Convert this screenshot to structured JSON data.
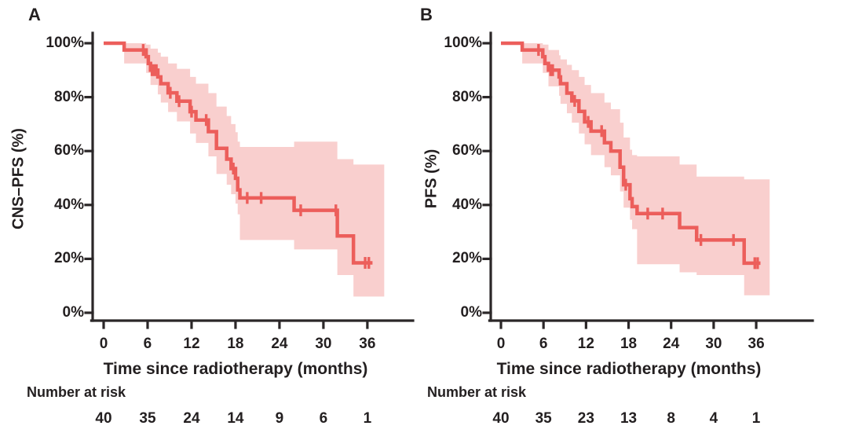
{
  "figure_title": "",
  "chart_data": [
    {
      "type": "line",
      "subtype": "kaplan-meier-step-with-confidence-band",
      "panel_label": "A",
      "xlabel": "Time since radiotherapy (months)",
      "ylabel": "CNS–PFS (%)",
      "xlim": [
        0,
        39
      ],
      "ylim": [
        0,
        100
      ],
      "xticks": [
        0,
        6,
        12,
        18,
        24,
        30,
        36
      ],
      "yticks": [
        [
          0,
          "0%"
        ],
        [
          20,
          "20%"
        ],
        [
          40,
          "40%"
        ],
        [
          60,
          "60%"
        ],
        [
          80,
          "80%"
        ],
        [
          100,
          "100%"
        ]
      ],
      "grid": false,
      "legend": "none",
      "line_color": "#ec5e5b",
      "band_color": "#f9cfce",
      "steps": [
        [
          0,
          100
        ],
        [
          2.8,
          97.5
        ],
        [
          5.8,
          95
        ],
        [
          6.1,
          92.5
        ],
        [
          6.4,
          90
        ],
        [
          7.4,
          87.5
        ],
        [
          7.8,
          85
        ],
        [
          8.8,
          81.6
        ],
        [
          10.0,
          78.5
        ],
        [
          11.8,
          74.6
        ],
        [
          12.6,
          71.5
        ],
        [
          14.3,
          67.2
        ],
        [
          15.4,
          61.0
        ],
        [
          16.8,
          57.0
        ],
        [
          17.4,
          53.5
        ],
        [
          18.0,
          49.9
        ],
        [
          18.3,
          45.6
        ],
        [
          18.6,
          42.6
        ],
        [
          26.0,
          38.0
        ],
        [
          31.9,
          28.5
        ],
        [
          34.1,
          18.5
        ]
      ],
      "curve_end": 36.7,
      "censors": [
        [
          5.4,
          97.5
        ],
        [
          6.6,
          90
        ],
        [
          6.9,
          90
        ],
        [
          7.2,
          90
        ],
        [
          9.1,
          81.6
        ],
        [
          10.3,
          78.5
        ],
        [
          12.0,
          74.6
        ],
        [
          14.0,
          71.5
        ],
        [
          17.7,
          53.5
        ],
        [
          19.6,
          42.6
        ],
        [
          21.5,
          42.6
        ],
        [
          26.9,
          38.0
        ],
        [
          31.7,
          38.0
        ],
        [
          35.7,
          18.5
        ],
        [
          36.2,
          18.5
        ]
      ],
      "band": [
        [
          2.8,
          100,
          92.5
        ],
        [
          5.8,
          99.5,
          89
        ],
        [
          6.4,
          98,
          84.5
        ],
        [
          7.4,
          96.5,
          81
        ],
        [
          7.8,
          95,
          78
        ],
        [
          8.8,
          92.5,
          74.5
        ],
        [
          10.0,
          90.5,
          71
        ],
        [
          11.8,
          87.5,
          66.5
        ],
        [
          12.6,
          85,
          63
        ],
        [
          14.3,
          81.5,
          58
        ],
        [
          15.4,
          76.5,
          51.5
        ],
        [
          16.8,
          73,
          47.5
        ],
        [
          17.4,
          70,
          44
        ],
        [
          18.0,
          67,
          40.5
        ],
        [
          18.3,
          63.5,
          36.5
        ],
        [
          18.6,
          61.5,
          27
        ],
        [
          26.0,
          63.5,
          23.5
        ],
        [
          31.9,
          57,
          14
        ],
        [
          34.1,
          55,
          6
        ]
      ],
      "band_end": 38.3,
      "number_at_risk": {
        "title": "Number at risk",
        "times": [
          0,
          6,
          12,
          18,
          24,
          30,
          36
        ],
        "values": [
          40,
          35,
          24,
          14,
          9,
          6,
          1
        ]
      }
    },
    {
      "type": "line",
      "subtype": "kaplan-meier-step-with-confidence-band",
      "panel_label": "B",
      "xlabel": "Time since radiotherapy (months)",
      "ylabel": "PFS (%)",
      "xlim": [
        0,
        39
      ],
      "ylim": [
        0,
        100
      ],
      "xticks": [
        0,
        6,
        12,
        18,
        24,
        30,
        36
      ],
      "yticks": [
        [
          0,
          "0%"
        ],
        [
          20,
          "20%"
        ],
        [
          40,
          "40%"
        ],
        [
          60,
          "60%"
        ],
        [
          80,
          "80%"
        ],
        [
          100,
          "100%"
        ]
      ],
      "grid": false,
      "legend": "none",
      "line_color": "#ec5e5b",
      "band_color": "#f9cfce",
      "steps": [
        [
          0,
          100
        ],
        [
          3.0,
          97.5
        ],
        [
          5.9,
          95
        ],
        [
          6.2,
          92.5
        ],
        [
          6.7,
          90
        ],
        [
          8.2,
          87.5
        ],
        [
          8.4,
          85
        ],
        [
          9.3,
          81.5
        ],
        [
          10.0,
          78.6
        ],
        [
          11.0,
          74.7
        ],
        [
          11.8,
          70.8
        ],
        [
          12.7,
          67.4
        ],
        [
          14.6,
          63.1
        ],
        [
          15.5,
          60.0
        ],
        [
          16.8,
          54.0
        ],
        [
          17.3,
          47.5
        ],
        [
          18.2,
          42.3
        ],
        [
          18.5,
          39.4
        ],
        [
          19.2,
          36.8
        ],
        [
          25.2,
          31.6
        ],
        [
          27.6,
          27.0
        ],
        [
          34.3,
          18.4
        ]
      ],
      "curve_end": 36.6,
      "censors": [
        [
          5.3,
          97.5
        ],
        [
          7.0,
          90
        ],
        [
          7.3,
          90
        ],
        [
          10.4,
          78.6
        ],
        [
          12.3,
          70.8
        ],
        [
          14.2,
          67.4
        ],
        [
          17.6,
          47.5
        ],
        [
          20.7,
          36.8
        ],
        [
          22.8,
          36.8
        ],
        [
          28.2,
          27.0
        ],
        [
          32.8,
          27.0
        ],
        [
          35.8,
          18.4
        ],
        [
          36.2,
          18.4
        ]
      ],
      "band": [
        [
          3.0,
          100,
          92.5
        ],
        [
          5.9,
          99.5,
          89
        ],
        [
          6.7,
          97.5,
          84
        ],
        [
          8.2,
          95.5,
          80.5
        ],
        [
          8.4,
          94,
          77.5
        ],
        [
          9.3,
          92,
          74
        ],
        [
          10.0,
          90,
          70.5
        ],
        [
          11.0,
          87.5,
          66.5
        ],
        [
          11.8,
          84.5,
          62.5
        ],
        [
          12.7,
          81.5,
          58.5
        ],
        [
          14.6,
          78,
          54
        ],
        [
          15.5,
          75.5,
          51
        ],
        [
          16.8,
          70.5,
          45
        ],
        [
          17.3,
          65,
          39
        ],
        [
          18.2,
          60.5,
          34.5
        ],
        [
          18.5,
          58.5,
          31
        ],
        [
          19.2,
          58,
          18
        ],
        [
          25.2,
          55,
          15
        ],
        [
          27.6,
          50.5,
          14
        ],
        [
          34.3,
          49.5,
          6.5
        ]
      ],
      "band_end": 37.9,
      "number_at_risk": {
        "title": "Number at risk",
        "times": [
          0,
          6,
          12,
          18,
          24,
          30,
          36
        ],
        "values": [
          40,
          35,
          23,
          13,
          8,
          4,
          1
        ]
      }
    }
  ]
}
